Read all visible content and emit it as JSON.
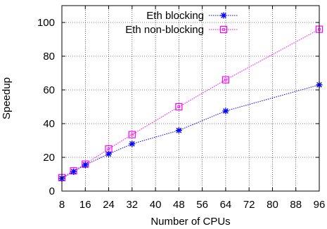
{
  "chart_data": {
    "type": "line",
    "title": "",
    "xlabel": "Number of CPUs",
    "ylabel": "Speedup",
    "xlim": [
      8,
      96
    ],
    "ylim": [
      0,
      110
    ],
    "xticks": [
      8,
      16,
      24,
      32,
      40,
      48,
      56,
      64,
      72,
      80,
      88,
      96
    ],
    "yticks": [
      0,
      20,
      40,
      60,
      80,
      100
    ],
    "grid": true,
    "legend_position": "top-right",
    "series": [
      {
        "name": "Eth blocking",
        "color": "#0000ff",
        "marker": "star",
        "line_style": "dotted",
        "x": [
          8,
          12,
          16,
          24,
          32,
          48,
          64,
          96
        ],
        "y": [
          7.5,
          11.5,
          15.5,
          22,
          28,
          36,
          47.5,
          63
        ]
      },
      {
        "name": "Eth non-blocking",
        "color": "#ff00ff",
        "marker": "square",
        "line_style": "dotted",
        "x": [
          8,
          12,
          16,
          24,
          32,
          48,
          64,
          96
        ],
        "y": [
          8,
          12,
          16,
          25,
          33.5,
          50,
          66,
          96
        ]
      }
    ]
  }
}
